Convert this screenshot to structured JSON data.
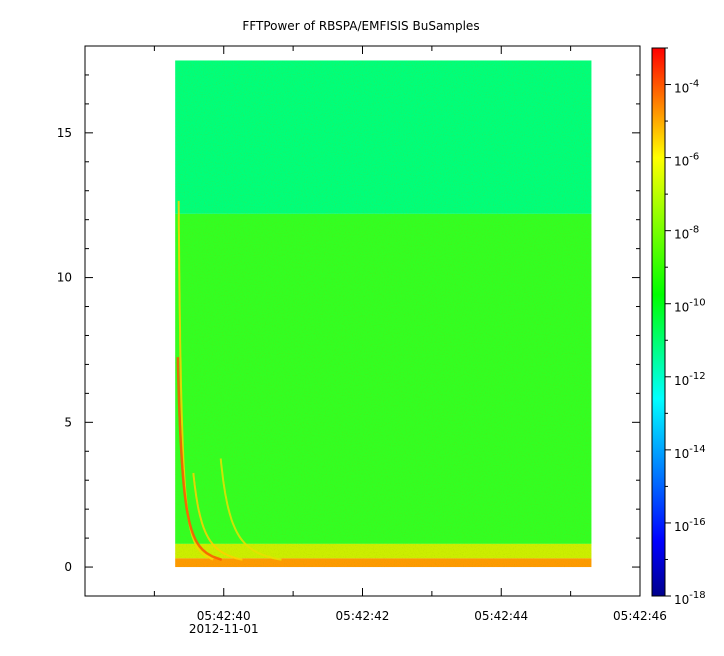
{
  "chart_data": {
    "type": "heatmap",
    "title": "FFTPower of RBSPA/EMFISIS  BuSamples",
    "xlabel": "",
    "ylabel": "",
    "x_axis": {
      "kind": "time",
      "date_label": "2012-11-01",
      "range": [
        "05:42:38.0",
        "05:42:46.0"
      ],
      "major_ticks": [
        {
          "t": "05:42:40",
          "label": "05:42:40"
        },
        {
          "t": "05:42:42",
          "label": "05:42:42"
        },
        {
          "t": "05:42:44",
          "label": "05:42:44"
        },
        {
          "t": "05:42:46",
          "label": "05:42:46"
        }
      ],
      "minor_tick_times": [
        "05:42:39",
        "05:42:41",
        "05:42:43",
        "05:42:45"
      ],
      "data_range": [
        "05:42:39.3",
        "05:42:45.3"
      ]
    },
    "y_axis": {
      "range": [
        -1,
        18
      ],
      "ticks": [
        0,
        5,
        10,
        15
      ],
      "tick_labels": [
        "0",
        "5",
        "10",
        "15"
      ],
      "data_range": [
        0,
        17.5
      ]
    },
    "colorbar": {
      "scale": "log",
      "range": [
        1e-18,
        0.001
      ],
      "colormap": [
        "#00008c",
        "#0000ff",
        "#00ffff",
        "#00ff00",
        "#ffff00",
        "#ff0000"
      ],
      "ticks": [
        {
          "base": "10",
          "exp": "-4",
          "value": 0.0001
        },
        {
          "base": "10",
          "exp": "-6",
          "value": 1e-06
        },
        {
          "base": "10",
          "exp": "-8",
          "value": 1e-08
        },
        {
          "base": "10",
          "exp": "-10",
          "value": 1e-10
        },
        {
          "base": "10",
          "exp": "-12",
          "value": 1e-12
        },
        {
          "base": "10",
          "exp": "-14",
          "value": 1e-14
        },
        {
          "base": "10",
          "exp": "-16",
          "value": 1e-16
        },
        {
          "base": "10",
          "exp": "-18",
          "value": 1e-18
        }
      ]
    },
    "regions": [
      {
        "y_range": [
          12.2,
          17.5
        ],
        "power": 3e-12,
        "color": "#00ff7a"
      },
      {
        "y_range": [
          0.8,
          12.2
        ],
        "power": 1e-10,
        "color": "#33ff22"
      },
      {
        "y_range": [
          0.3,
          0.8
        ],
        "power": 1e-08,
        "color": "#ccee00"
      },
      {
        "y_range": [
          0,
          0.3
        ],
        "power": 1e-07,
        "color": "#ff9900"
      }
    ],
    "dispersive_whistlers": [
      {
        "t0": "05:42:39.35",
        "f_max": 12.4,
        "power": 1e-08
      },
      {
        "t0": "05:42:39.3",
        "f_max": 7.0,
        "power": 1e-06
      },
      {
        "t0": "05:42:39.45",
        "f_max": 3.0,
        "power": 1e-08
      },
      {
        "t0": "05:42:39.8",
        "f_max": 3.5,
        "power": 1e-08
      }
    ],
    "grid": false
  }
}
